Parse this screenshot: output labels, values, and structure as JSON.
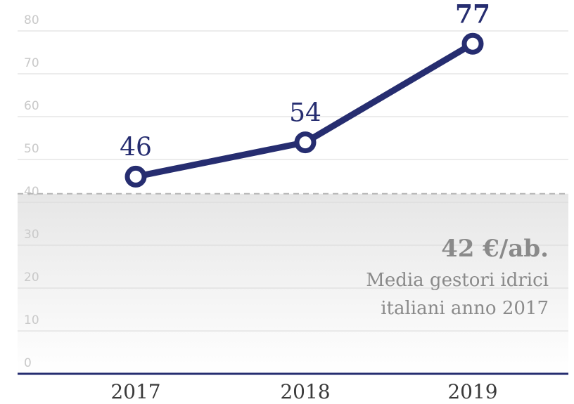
{
  "chart_data": {
    "type": "line",
    "categories": [
      "2017",
      "2018",
      "2019"
    ],
    "series": [
      {
        "values": [
          46,
          54,
          77
        ],
        "color": "#262d70"
      }
    ],
    "data_labels": [
      "46",
      "54",
      "77"
    ],
    "y_ticks": [
      "0",
      "10",
      "20",
      "30",
      "40",
      "50",
      "60",
      "70",
      "80"
    ],
    "ylim": [
      0,
      80
    ],
    "grid": true,
    "reference": {
      "value": 42,
      "value_label": "42 €/ab.",
      "line1": "Media gestori idrici",
      "line2": "italiani anno 2017",
      "color": "#b5b5b5"
    }
  }
}
